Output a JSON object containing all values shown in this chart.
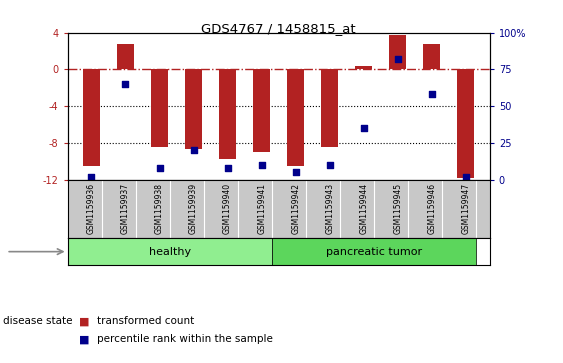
{
  "title": "GDS4767 / 1458815_at",
  "samples": [
    "GSM1159936",
    "GSM1159937",
    "GSM1159938",
    "GSM1159939",
    "GSM1159940",
    "GSM1159941",
    "GSM1159942",
    "GSM1159943",
    "GSM1159944",
    "GSM1159945",
    "GSM1159946",
    "GSM1159947"
  ],
  "bar_values": [
    -10.5,
    2.8,
    -8.5,
    -8.7,
    -9.8,
    -9.0,
    -10.5,
    -8.5,
    0.4,
    3.7,
    2.8,
    -11.8
  ],
  "percentile_values": [
    2,
    65,
    8,
    20,
    8,
    10,
    5,
    10,
    35,
    82,
    58,
    2
  ],
  "bar_color": "#B22222",
  "percentile_color": "#00008B",
  "ylim_left": [
    -12,
    4
  ],
  "ylim_right": [
    0,
    100
  ],
  "yticks_left": [
    -12,
    -8,
    -4,
    0,
    4
  ],
  "yticks_right": [
    0,
    25,
    50,
    75,
    100
  ],
  "hline_y": 0,
  "dotted_lines": [
    -4,
    -8
  ],
  "healthy_count": 6,
  "tumor_count": 6,
  "healthy_label": "healthy",
  "tumor_label": "pancreatic tumor",
  "disease_label": "disease state",
  "legend_bar_label": "transformed count",
  "legend_pct_label": "percentile rank within the sample",
  "healthy_color": "#90EE90",
  "tumor_color": "#5CD65C",
  "group_box_color": "#C8C8C8",
  "bar_width": 0.5
}
